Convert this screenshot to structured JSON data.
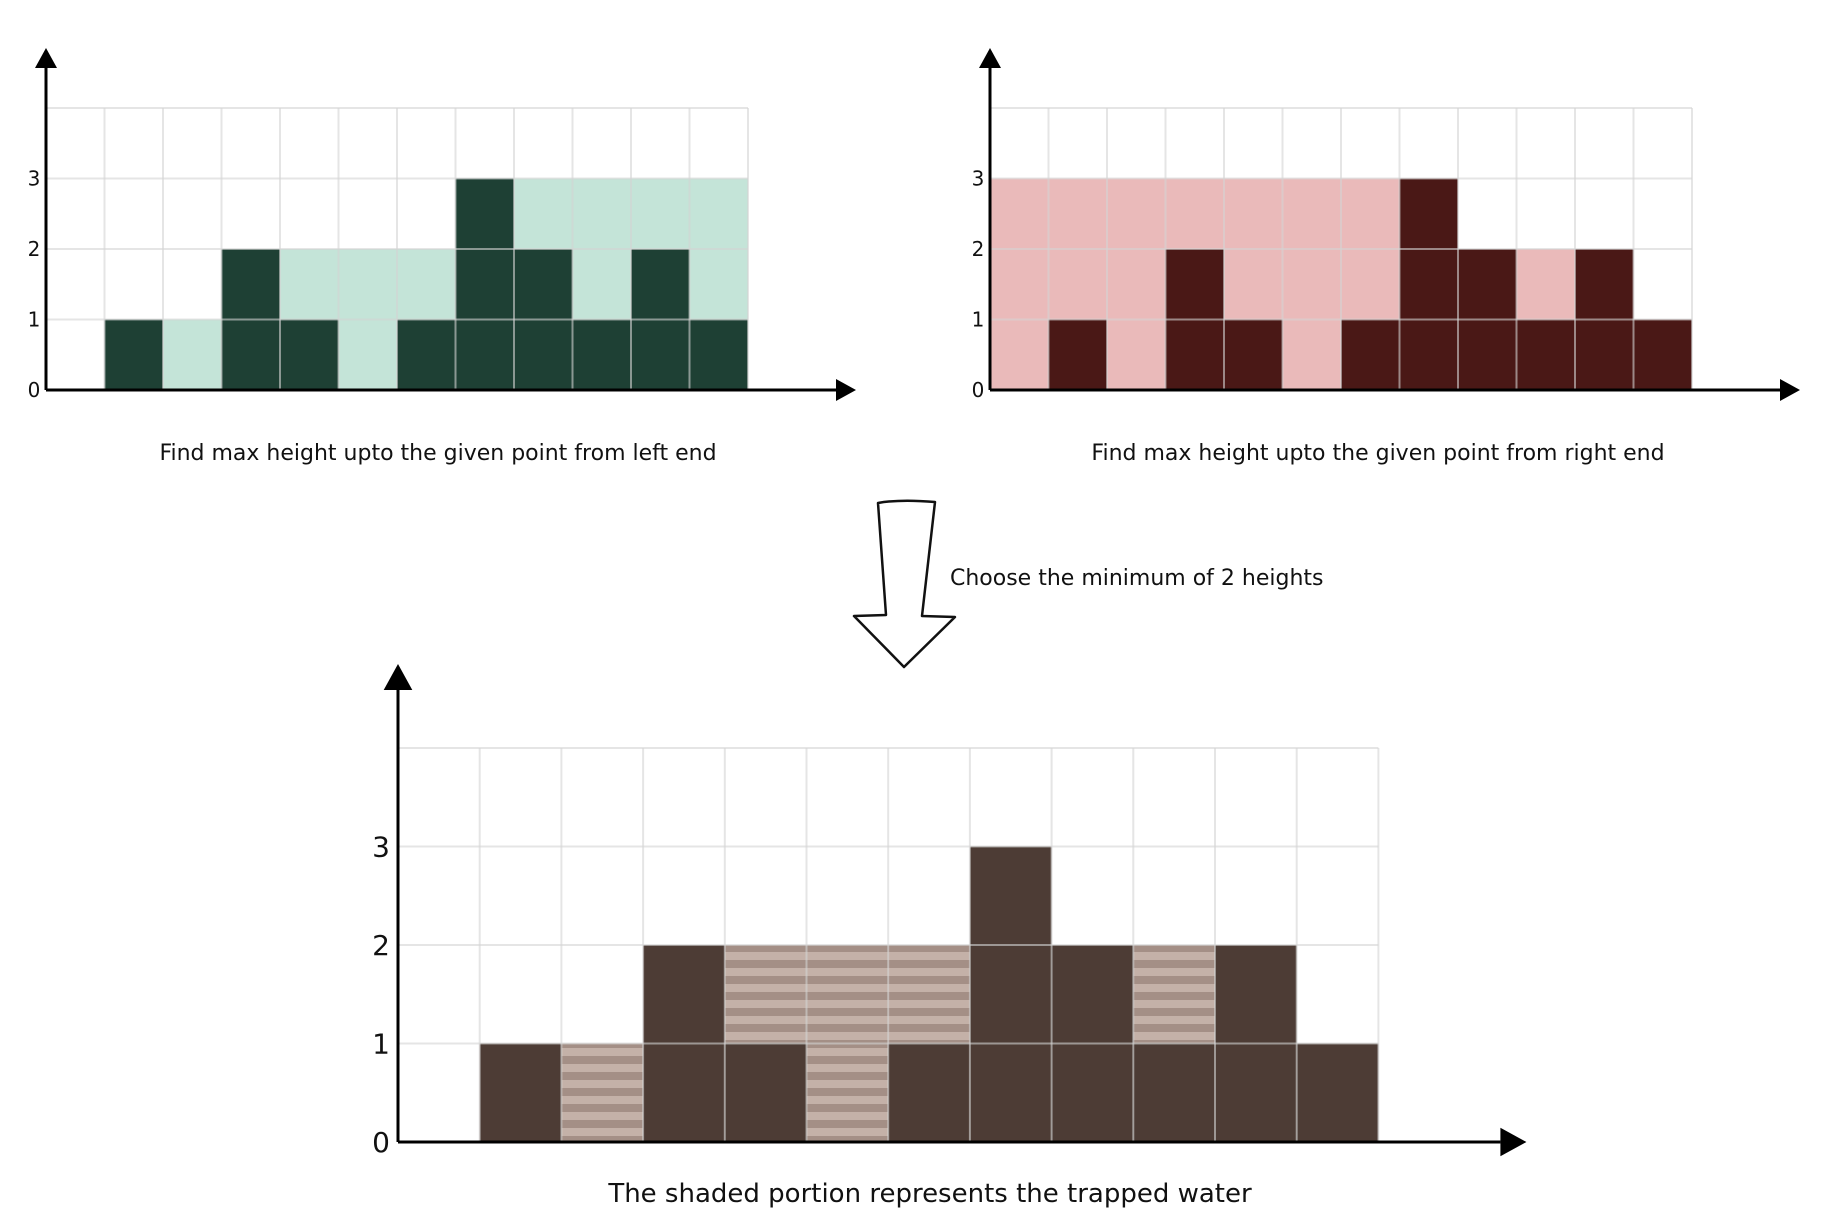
{
  "bars": [
    0,
    1,
    0,
    2,
    1,
    0,
    1,
    3,
    2,
    1,
    2,
    1
  ],
  "y_ticks": [
    "0",
    "1",
    "2",
    "3"
  ],
  "left_max": {
    "caption": "Find max height upto the given point from left end",
    "values": [
      0,
      1,
      1,
      2,
      2,
      2,
      2,
      3,
      3,
      3,
      3,
      3
    ],
    "colors": {
      "bar": "#1e4034",
      "fill": "#c4e4d8",
      "grid": "#d4d4d4"
    }
  },
  "right_max": {
    "caption": "Find max height upto the given point from right end",
    "values": [
      3,
      3,
      3,
      3,
      3,
      3,
      3,
      3,
      2,
      2,
      2,
      1
    ],
    "colors": {
      "bar": "#4a1816",
      "fill": "#eababa",
      "grid": "#d4d4d4"
    }
  },
  "step": {
    "label": "Choose the minimum of 2 heights"
  },
  "result": {
    "caption": "The shaded portion represents the trapped water",
    "water": [
      0,
      0,
      1,
      0,
      1,
      2,
      1,
      0,
      0,
      1,
      0,
      0
    ],
    "colors": {
      "bar": "#4d3c35",
      "water_a": "#a48f86",
      "water_b": "#c4b1a8",
      "left_fill": "#c4e4d8",
      "right_fill": "#eababa",
      "grid": "#d4d4d4"
    }
  }
}
